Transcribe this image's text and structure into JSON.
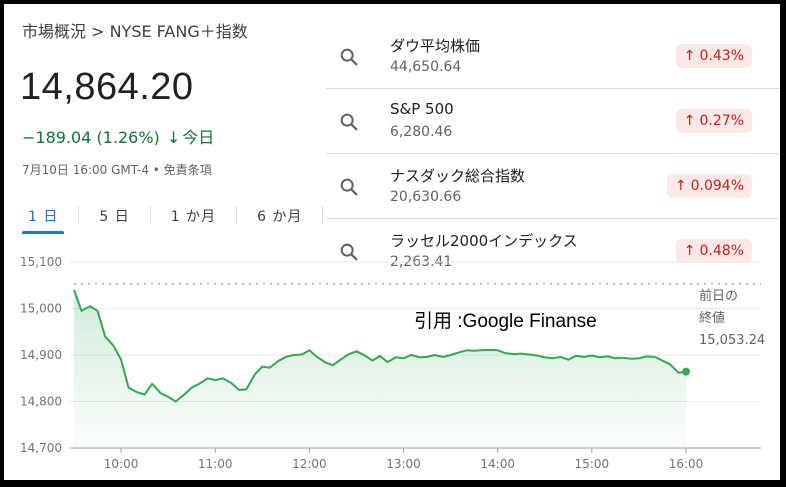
{
  "breadcrumb": "市場概況 > NYSE FANG＋指数",
  "price": "14,864.20",
  "change": {
    "text": "−189.04 (1.26%)",
    "arrow": "↓",
    "period": "今日"
  },
  "timestamp": "7月10日 16:00 GMT-4 • 免責条項",
  "tabs": [
    "1 日",
    "5 日",
    "1 か月",
    "6 か月"
  ],
  "related": [
    {
      "name": "ダウ平均株価",
      "value": "44,650.64",
      "change": "0.43%",
      "arrow": "↑"
    },
    {
      "name": "S&P 500",
      "value": "6,280.46",
      "change": "0.27%",
      "arrow": "↑"
    },
    {
      "name": "ナスダック総合指数",
      "value": "20,630.66",
      "change": "0.094%",
      "arrow": "↑"
    },
    {
      "name": "ラッセル2000インデックス",
      "value": "2,263.41",
      "change": "0.48%",
      "arrow": "↑"
    }
  ],
  "watermark": "引用 :Google Finanse",
  "prev_close": {
    "label1": "前日の",
    "label2": "終値",
    "value": "15,053.24"
  },
  "colors": {
    "line": "#34a853",
    "up_badge_bg": "#fce8e6",
    "up_badge_text": "#c5221f",
    "down_text": "#137333",
    "accent": "#1a73e8"
  },
  "chart_data": {
    "type": "area",
    "x_ticks": [
      "10:00",
      "11:00",
      "12:00",
      "13:00",
      "14:00",
      "15:00",
      "16:00"
    ],
    "y_ticks": [
      "15,100",
      "15,000",
      "14,900",
      "14,800",
      "14,700"
    ],
    "ylim": [
      14700,
      15100
    ],
    "xlim": [
      9.5,
      16.0
    ],
    "reference_value": 15053.24,
    "points": [
      [
        9.5,
        15040
      ],
      [
        9.58,
        14995
      ],
      [
        9.67,
        15005
      ],
      [
        9.75,
        14995
      ],
      [
        9.83,
        14940
      ],
      [
        9.92,
        14920
      ],
      [
        10.0,
        14890
      ],
      [
        10.08,
        14830
      ],
      [
        10.17,
        14820
      ],
      [
        10.25,
        14815
      ],
      [
        10.33,
        14838
      ],
      [
        10.42,
        14818
      ],
      [
        10.5,
        14810
      ],
      [
        10.58,
        14800
      ],
      [
        10.67,
        14815
      ],
      [
        10.75,
        14830
      ],
      [
        10.83,
        14838
      ],
      [
        10.92,
        14850
      ],
      [
        11.0,
        14846
      ],
      [
        11.08,
        14850
      ],
      [
        11.17,
        14840
      ],
      [
        11.25,
        14825
      ],
      [
        11.33,
        14826
      ],
      [
        11.42,
        14858
      ],
      [
        11.5,
        14875
      ],
      [
        11.58,
        14873
      ],
      [
        11.67,
        14887
      ],
      [
        11.75,
        14896
      ],
      [
        11.83,
        14900
      ],
      [
        11.92,
        14901
      ],
      [
        12.0,
        14910
      ],
      [
        12.08,
        14896
      ],
      [
        12.17,
        14884
      ],
      [
        12.25,
        14878
      ],
      [
        12.33,
        14890
      ],
      [
        12.42,
        14902
      ],
      [
        12.5,
        14908
      ],
      [
        12.58,
        14900
      ],
      [
        12.67,
        14888
      ],
      [
        12.75,
        14898
      ],
      [
        12.83,
        14885
      ],
      [
        12.92,
        14895
      ],
      [
        13.0,
        14893
      ],
      [
        13.08,
        14900
      ],
      [
        13.17,
        14895
      ],
      [
        13.25,
        14896
      ],
      [
        13.33,
        14900
      ],
      [
        13.42,
        14896
      ],
      [
        13.5,
        14900
      ],
      [
        13.58,
        14905
      ],
      [
        13.67,
        14910
      ],
      [
        13.75,
        14909
      ],
      [
        13.83,
        14910
      ],
      [
        13.92,
        14911
      ],
      [
        14.0,
        14910
      ],
      [
        14.08,
        14904
      ],
      [
        14.17,
        14902
      ],
      [
        14.25,
        14903
      ],
      [
        14.33,
        14901
      ],
      [
        14.42,
        14899
      ],
      [
        14.5,
        14895
      ],
      [
        14.58,
        14893
      ],
      [
        14.67,
        14896
      ],
      [
        14.75,
        14890
      ],
      [
        14.83,
        14898
      ],
      [
        14.92,
        14896
      ],
      [
        15.0,
        14899
      ],
      [
        15.08,
        14895
      ],
      [
        15.17,
        14897
      ],
      [
        15.25,
        14893
      ],
      [
        15.33,
        14894
      ],
      [
        15.42,
        14892
      ],
      [
        15.5,
        14893
      ],
      [
        15.58,
        14897
      ],
      [
        15.67,
        14896
      ],
      [
        15.75,
        14888
      ],
      [
        15.83,
        14880
      ],
      [
        15.92,
        14862
      ],
      [
        16.0,
        14864.2
      ]
    ]
  }
}
